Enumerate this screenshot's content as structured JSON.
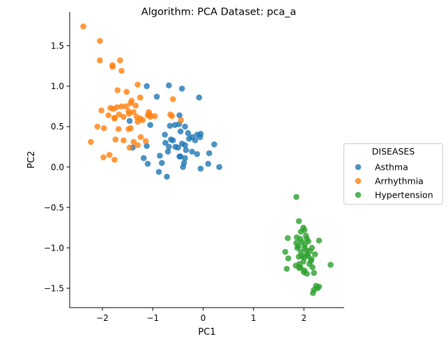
{
  "chart_data": {
    "type": "scatter",
    "title": "Algorithm: PCA  Dataset: pca_a",
    "xlabel": "PC1",
    "ylabel": "PC2",
    "xlim": [
      -2.65,
      2.8
    ],
    "ylim": [
      -1.74,
      1.92
    ],
    "xticks": [
      -2,
      -1,
      0,
      1,
      2
    ],
    "yticks": [
      -1.5,
      -1.0,
      -0.5,
      0.0,
      0.5,
      1.0,
      1.5
    ],
    "xtick_labels": [
      "−2",
      "−1",
      "0",
      "1",
      "2"
    ],
    "ytick_labels": [
      "−1.5",
      "−1.0",
      "−0.5",
      "0.0",
      "0.5",
      "1.0",
      "1.5"
    ],
    "grid": false,
    "legend": {
      "title": "DISEASES",
      "placement": "right outside"
    },
    "series": [
      {
        "name": "Asthma",
        "color": "#1f77b4",
        "x": [
          -1.46,
          -1.12,
          -0.92,
          -0.68,
          -0.42,
          -0.47,
          -0.08,
          -0.48,
          -0.66,
          -0.36,
          -0.45,
          -0.3,
          -0.12,
          -0.22,
          -0.06,
          -0.28,
          -0.16,
          -0.05,
          -0.64,
          -0.6,
          -0.75,
          -0.42,
          -0.36,
          -0.5,
          -1.05,
          -0.55,
          -0.34,
          -0.7,
          -0.68,
          -0.22,
          -0.12,
          0.12,
          0.22,
          -1.4,
          -1.12,
          -0.76,
          -0.56,
          -0.47,
          -0.36,
          -0.82,
          -0.86,
          -1.18,
          -0.72,
          -0.4,
          -0.05,
          0.1,
          0.32,
          -0.45,
          -0.38,
          -1.1,
          -0.88
        ],
        "y": [
          0.57,
          1.0,
          0.87,
          1.01,
          0.97,
          0.64,
          0.86,
          0.53,
          0.51,
          0.5,
          0.44,
          0.42,
          0.4,
          0.37,
          0.37,
          0.35,
          0.33,
          0.41,
          0.34,
          0.33,
          0.3,
          0.29,
          0.27,
          0.24,
          0.52,
          0.25,
          0.21,
          0.19,
          0.25,
          0.19,
          0.16,
          0.17,
          0.28,
          0.24,
          0.26,
          0.4,
          0.52,
          0.13,
          0.11,
          0.05,
          0.14,
          0.11,
          -0.12,
          0.0,
          -0.02,
          0.04,
          0.0,
          0.13,
          0.05,
          0.04,
          -0.06
        ]
      },
      {
        "name": "Arrhythmia",
        "color": "#ff7f0e",
        "x": [
          -2.38,
          -2.05,
          -2.05,
          -1.8,
          -1.8,
          -1.65,
          -1.62,
          -1.7,
          -1.3,
          -1.52,
          -1.42,
          -1.25,
          -1.62,
          -1.44,
          -1.34,
          -1.08,
          -0.6,
          -1.53,
          -1.84,
          -1.71,
          -1.78,
          -1.48,
          -1.38,
          -1.47,
          -1.25,
          -1.1,
          -1.67,
          -1.58,
          -1.2,
          -1.06,
          -0.96,
          -0.65,
          -2.02,
          -1.88,
          -1.76,
          -1.44,
          -1.3,
          -1.48,
          -1.32,
          -1.05,
          -0.62,
          -0.44,
          -2.1,
          -1.68,
          -1.76,
          -1.97,
          -1.58,
          -1.38,
          -1.24,
          -1.14,
          -2.23,
          -1.3,
          -1.86,
          -1.74,
          -1.98,
          -1.76,
          -1.46
        ],
        "y": [
          1.74,
          1.56,
          1.32,
          1.26,
          1.24,
          1.32,
          1.19,
          0.95,
          1.02,
          0.93,
          0.82,
          0.86,
          0.75,
          0.79,
          0.76,
          0.68,
          0.84,
          0.75,
          0.73,
          0.74,
          0.72,
          0.69,
          0.68,
          0.66,
          0.6,
          0.64,
          0.65,
          0.62,
          0.58,
          0.65,
          0.63,
          0.65,
          0.7,
          0.64,
          0.61,
          0.48,
          0.56,
          0.47,
          0.62,
          0.62,
          0.63,
          0.58,
          0.5,
          0.47,
          0.6,
          0.48,
          0.33,
          0.31,
          0.37,
          0.32,
          0.31,
          0.27,
          0.15,
          0.34,
          0.12,
          0.09,
          0.24
        ]
      },
      {
        "name": "Hypertension",
        "color": "#2ca02c",
        "x": [
          1.85,
          1.9,
          1.99,
          1.94,
          2.01,
          2.04,
          1.86,
          2.06,
          1.93,
          1.85,
          1.96,
          2.09,
          2.02,
          1.89,
          1.68,
          2.16,
          2.3,
          2.01,
          2.05,
          2.12,
          1.94,
          2.06,
          2.22,
          1.63,
          1.96,
          2.01,
          2.08,
          1.9,
          2.15,
          1.69,
          1.87,
          2.14,
          2.53,
          2.11,
          1.99,
          1.91,
          1.84,
          2.17,
          1.66,
          1.91,
          2.0,
          1.93,
          2.01,
          2.06,
          2.2,
          2.24,
          2.27,
          2.3,
          2.2,
          2.18
        ],
        "y": [
          -0.37,
          -0.67,
          -0.75,
          -0.8,
          -0.78,
          -0.85,
          -0.87,
          -0.89,
          -0.89,
          -0.94,
          -0.93,
          -0.92,
          -0.96,
          -0.98,
          -0.88,
          -1.0,
          -0.91,
          -1.0,
          -1.03,
          -1.04,
          -1.05,
          -1.08,
          -1.08,
          -1.05,
          -1.1,
          -1.12,
          -1.1,
          -1.11,
          -1.14,
          -1.13,
          -1.0,
          -1.16,
          -1.21,
          -1.2,
          -1.17,
          -1.2,
          -1.22,
          -1.24,
          -1.26,
          -1.25,
          -1.3,
          -1.24,
          -1.28,
          -1.32,
          -1.31,
          -1.47,
          -1.5,
          -1.48,
          -1.52,
          -1.56
        ]
      }
    ]
  }
}
